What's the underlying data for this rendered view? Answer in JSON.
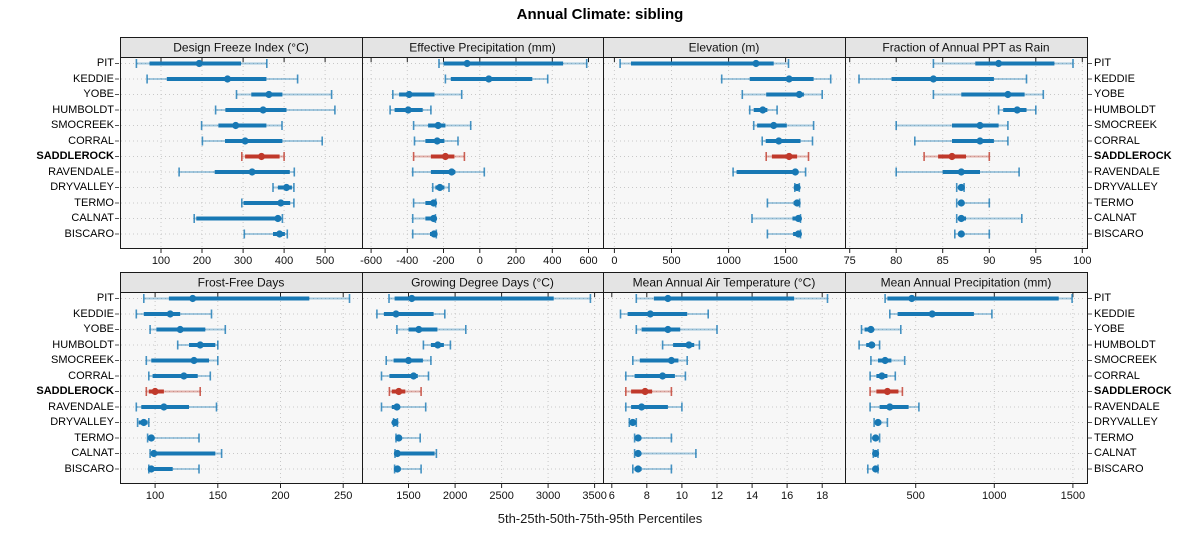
{
  "title": "Annual Climate: sibling",
  "caption": "5th-25th-50th-75th-95th Percentiles",
  "stations": [
    "PIT",
    "KEDDIE",
    "YOBE",
    "HUMBOLDT",
    "SMOCREEK",
    "CORRAL",
    "SADDLEROCK",
    "RAVENDALE",
    "DRYVALLEY",
    "TERMO",
    "CALNAT",
    "BISCARO"
  ],
  "highlight_station": "SADDLEROCK",
  "colors": {
    "primary": "#1878B4",
    "highlight": "#C0392B",
    "panel_bg": "#F7F7F7",
    "strip_bg": "#E4E4E4",
    "frame": "#1A1A1A",
    "grid": "#C8C8C8"
  },
  "chart_data": [
    {
      "type": "interval-dotplot",
      "title": "Design Freeze Index (°C)",
      "xlim": [
        0,
        590
      ],
      "ticks": [
        100,
        200,
        300,
        400,
        500
      ],
      "percentiles": [
        5,
        25,
        50,
        75,
        95
      ],
      "values": {
        "PIT": [
          40,
          72,
          193,
          295,
          358
        ],
        "KEDDIE": [
          66,
          114,
          262,
          357,
          433
        ],
        "YOBE": [
          284,
          320,
          363,
          396,
          516
        ],
        "HUMBOLDT": [
          233,
          257,
          349,
          406,
          524
        ],
        "SMOCREEK": [
          199,
          240,
          282,
          357,
          395
        ],
        "CORRAL": [
          201,
          256,
          305,
          396,
          493
        ],
        "SADDLEROCK": [
          297,
          305,
          345,
          389,
          400
        ],
        "RAVENDALE": [
          144,
          231,
          322,
          414,
          425
        ],
        "DRYVALLEY": [
          373,
          385,
          406,
          419,
          424
        ],
        "TERMO": [
          297,
          301,
          392,
          415,
          424
        ],
        "CALNAT": [
          181,
          186,
          385,
          392,
          396
        ],
        "BISCARO": [
          303,
          373,
          389,
          402,
          408
        ]
      }
    },
    {
      "type": "interval-dotplot",
      "title": "Effective Precipitation (mm)",
      "xlim": [
        -650,
        680
      ],
      "ticks": [
        -600,
        -400,
        -200,
        0,
        200,
        400,
        600
      ],
      "percentiles": [
        5,
        25,
        50,
        75,
        95
      ],
      "values": {
        "PIT": [
          -225,
          -200,
          -70,
          460,
          590
        ],
        "KEDDIE": [
          -190,
          -160,
          50,
          290,
          375
        ],
        "YOBE": [
          -480,
          -445,
          -390,
          -250,
          -100
        ],
        "HUMBOLDT": [
          -495,
          -470,
          -395,
          -315,
          -270
        ],
        "SMOCREEK": [
          -365,
          -285,
          -230,
          -190,
          -50
        ],
        "CORRAL": [
          -360,
          -300,
          -235,
          -195,
          -120
        ],
        "SADDLEROCK": [
          -365,
          -270,
          -190,
          -140,
          -85
        ],
        "RAVENDALE": [
          -370,
          -270,
          -155,
          -135,
          25
        ],
        "DRYVALLEY": [
          -260,
          -245,
          -220,
          -195,
          -170
        ],
        "TERMO": [
          -365,
          -300,
          -255,
          -250,
          -243
        ],
        "CALNAT": [
          -370,
          -300,
          -255,
          -250,
          -245
        ],
        "BISCARO": [
          -370,
          -275,
          -252,
          -246,
          -240
        ]
      }
    },
    {
      "type": "interval-dotplot",
      "title": "Elevation (m)",
      "xlim": [
        -100,
        2020
      ],
      "ticks": [
        0,
        500,
        1000,
        1500
      ],
      "percentiles": [
        5,
        25,
        50,
        75,
        95
      ],
      "values": {
        "PIT": [
          50,
          145,
          1240,
          1395,
          1525
        ],
        "KEDDIE": [
          940,
          1185,
          1530,
          1745,
          1895
        ],
        "YOBE": [
          1120,
          1330,
          1620,
          1660,
          1820
        ],
        "HUMBOLDT": [
          1185,
          1220,
          1300,
          1340,
          1425
        ],
        "SMOCREEK": [
          1220,
          1250,
          1395,
          1510,
          1745
        ],
        "CORRAL": [
          1295,
          1325,
          1440,
          1630,
          1735
        ],
        "SADDLEROCK": [
          1330,
          1380,
          1530,
          1600,
          1700
        ],
        "RAVENDALE": [
          1040,
          1070,
          1585,
          1605,
          1675
        ],
        "DRYVALLEY": [
          1580,
          1590,
          1600,
          1608,
          1620
        ],
        "TERMO": [
          1340,
          1570,
          1600,
          1610,
          1622
        ],
        "CALNAT": [
          1205,
          1560,
          1612,
          1620,
          1630
        ],
        "BISCARO": [
          1340,
          1565,
          1612,
          1620,
          1630
        ]
      }
    },
    {
      "type": "interval-dotplot",
      "title": "Fraction of Annual PPT as Rain",
      "xlim": [
        74.5,
        100.5
      ],
      "ticks": [
        75,
        80,
        85,
        90,
        95,
        100
      ],
      "percentiles": [
        5,
        25,
        50,
        75,
        95
      ],
      "values": {
        "PIT": [
          84,
          88.5,
          91,
          97,
          99
        ],
        "KEDDIE": [
          76,
          79.5,
          84,
          90.5,
          94
        ],
        "YOBE": [
          84,
          87,
          92,
          93.8,
          95.8
        ],
        "HUMBOLDT": [
          91,
          91.5,
          93,
          94,
          95
        ],
        "SMOCREEK": [
          80,
          86,
          89,
          91,
          92
        ],
        "CORRAL": [
          82,
          86,
          89,
          90.5,
          92
        ],
        "SADDLEROCK": [
          83,
          84.5,
          86,
          87.5,
          90
        ],
        "RAVENDALE": [
          80,
          85,
          87,
          89,
          93.2
        ],
        "DRYVALLEY": [
          86.5,
          86.8,
          87,
          87.1,
          87.3
        ],
        "TERMO": [
          86.5,
          86.8,
          87,
          87.2,
          90
        ],
        "CALNAT": [
          86.5,
          86.8,
          87,
          87.5,
          93.5
        ],
        "BISCARO": [
          86.3,
          86.7,
          87,
          87.2,
          90
        ]
      }
    },
    {
      "type": "interval-dotplot",
      "title": "Frost-Free Days",
      "xlim": [
        72,
        265
      ],
      "ticks": [
        100,
        150,
        200,
        250
      ],
      "percentiles": [
        5,
        25,
        50,
        75,
        95
      ],
      "values": {
        "PIT": [
          91,
          111,
          130,
          223,
          255
        ],
        "KEDDIE": [
          85,
          91,
          112,
          120,
          145
        ],
        "YOBE": [
          96,
          101,
          120,
          140,
          156
        ],
        "HUMBOLDT": [
          118,
          127,
          136,
          148,
          150
        ],
        "SMOCREEK": [
          93,
          97,
          131,
          143,
          150
        ],
        "CORRAL": [
          95,
          98,
          123,
          134,
          144
        ],
        "SADDLEROCK": [
          93,
          95,
          100,
          107,
          136
        ],
        "RAVENDALE": [
          85,
          89,
          107,
          127,
          149
        ],
        "DRYVALLEY": [
          86,
          87,
          91,
          94,
          95
        ],
        "TERMO": [
          94,
          95,
          97,
          98,
          135
        ],
        "CALNAT": [
          96,
          97,
          99,
          148,
          153
        ],
        "BISCARO": [
          95,
          96,
          97,
          114,
          135
        ]
      }
    },
    {
      "type": "interval-dotplot",
      "title": "Growing Degree Days (°C)",
      "xlim": [
        1000,
        3590
      ],
      "ticks": [
        1500,
        2000,
        2500,
        3000,
        3500
      ],
      "percentiles": [
        5,
        25,
        50,
        75,
        95
      ],
      "values": {
        "PIT": [
          1290,
          1350,
          1535,
          3060,
          3455
        ],
        "KEDDIE": [
          1160,
          1235,
          1365,
          1770,
          1890
        ],
        "YOBE": [
          1375,
          1500,
          1610,
          1810,
          2115
        ],
        "HUMBOLDT": [
          1660,
          1740,
          1815,
          1880,
          1950
        ],
        "SMOCREEK": [
          1260,
          1340,
          1500,
          1655,
          1740
        ],
        "CORRAL": [
          1210,
          1295,
          1555,
          1600,
          1715
        ],
        "SADDLEROCK": [
          1295,
          1320,
          1395,
          1465,
          1635
        ],
        "RAVENDALE": [
          1210,
          1320,
          1375,
          1405,
          1685
        ],
        "DRYVALLEY": [
          1340,
          1350,
          1355,
          1365,
          1380
        ],
        "TERMO": [
          1365,
          1380,
          1395,
          1420,
          1625
        ],
        "CALNAT": [
          1355,
          1365,
          1380,
          1780,
          1800
        ],
        "BISCARO": [
          1350,
          1355,
          1380,
          1415,
          1635
        ]
      }
    },
    {
      "type": "interval-dotplot",
      "title": "Mean Annual Air Temperature (°C)",
      "xlim": [
        5.5,
        19.3
      ],
      "ticks": [
        6,
        8,
        10,
        12,
        14,
        16,
        18
      ],
      "percentiles": [
        5,
        25,
        50,
        75,
        95
      ],
      "values": {
        "PIT": [
          7.4,
          8.4,
          9.2,
          16.4,
          18.3
        ],
        "KEDDIE": [
          6.5,
          6.9,
          8.2,
          10.3,
          11.5
        ],
        "YOBE": [
          7.4,
          7.7,
          9.2,
          9.9,
          12.0
        ],
        "HUMBOLDT": [
          8.9,
          9.5,
          10.4,
          10.7,
          11.0
        ],
        "SMOCREEK": [
          7.2,
          7.6,
          9.4,
          9.8,
          10.3
        ],
        "CORRAL": [
          6.8,
          7.3,
          8.9,
          9.6,
          10.2
        ],
        "SADDLEROCK": [
          6.8,
          7.1,
          7.9,
          8.3,
          9.4
        ],
        "RAVENDALE": [
          6.8,
          7.1,
          7.7,
          9.2,
          10.0
        ],
        "DRYVALLEY": [
          7.0,
          7.1,
          7.2,
          7.3,
          7.4
        ],
        "TERMO": [
          7.3,
          7.4,
          7.5,
          7.6,
          9.4
        ],
        "CALNAT": [
          7.3,
          7.4,
          7.5,
          7.6,
          10.8
        ],
        "BISCARO": [
          7.2,
          7.3,
          7.5,
          7.7,
          9.4
        ]
      }
    },
    {
      "type": "interval-dotplot",
      "title": "Mean Annual Precipitation (mm)",
      "xlim": [
        50,
        1590
      ],
      "ticks": [
        500,
        1000,
        1500
      ],
      "percentiles": [
        5,
        25,
        50,
        75,
        95
      ],
      "values": {
        "PIT": [
          305,
          320,
          475,
          1410,
          1495
        ],
        "KEDDIE": [
          335,
          385,
          605,
          870,
          985
        ],
        "YOBE": [
          155,
          175,
          215,
          230,
          405
        ],
        "HUMBOLDT": [
          140,
          185,
          220,
          240,
          270
        ],
        "SMOCREEK": [
          215,
          260,
          305,
          345,
          430
        ],
        "CORRAL": [
          210,
          250,
          285,
          320,
          370
        ],
        "SADDLEROCK": [
          210,
          250,
          320,
          390,
          415
        ],
        "RAVENDALE": [
          210,
          270,
          335,
          455,
          520
        ],
        "DRYVALLEY": [
          235,
          245,
          260,
          280,
          320
        ],
        "TERMO": [
          215,
          225,
          245,
          260,
          270
        ],
        "CALNAT": [
          230,
          235,
          245,
          255,
          260
        ],
        "BISCARO": [
          195,
          230,
          245,
          255,
          260
        ]
      }
    }
  ],
  "layout": {
    "grid": "dotted",
    "panel_rows": 2,
    "panel_cols": 4,
    "station_labels": "both-sides"
  }
}
